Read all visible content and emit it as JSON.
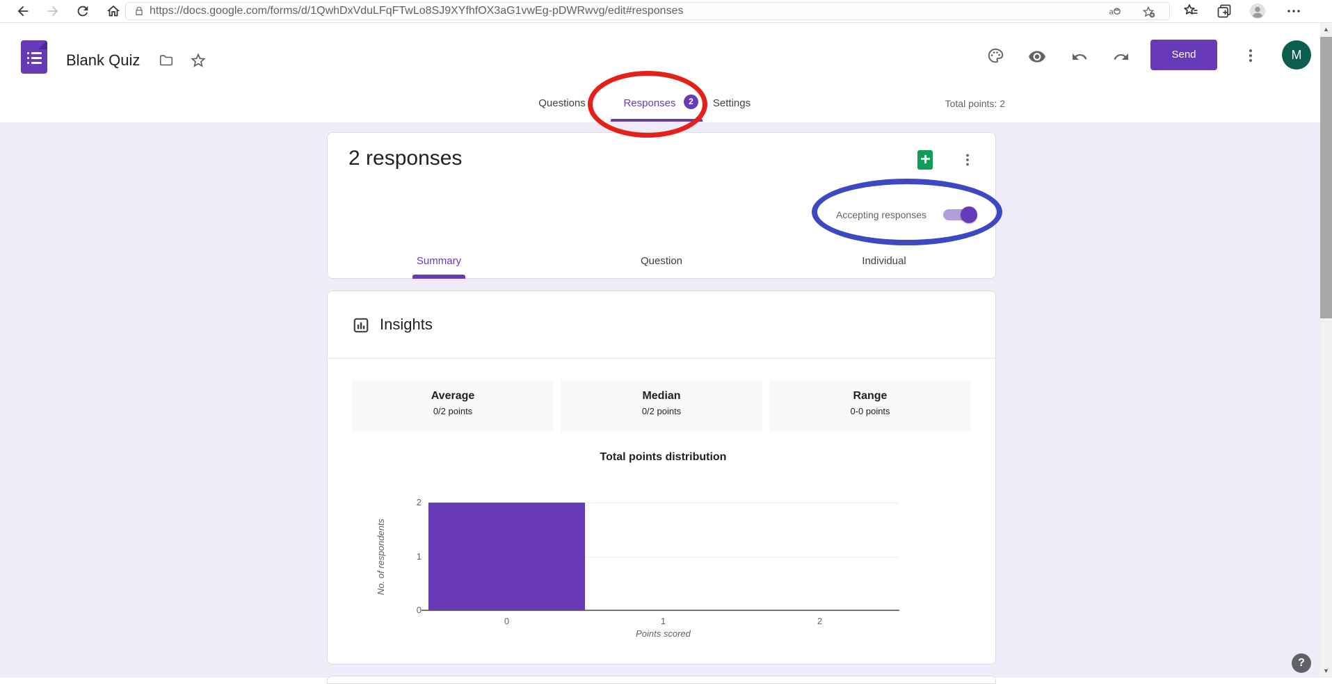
{
  "browser": {
    "url": "https://docs.google.com/forms/d/1QwhDxVduLFqFTwLo8SJ9XYfhfOX3aG1vwEg-pDWRwvg/edit#responses"
  },
  "header": {
    "title": "Blank Quiz",
    "send_label": "Send",
    "avatar_letter": "M",
    "total_points": "Total points: 2",
    "tabs": [
      {
        "label": "Questions"
      },
      {
        "label": "Responses",
        "badge": "2"
      },
      {
        "label": "Settings"
      }
    ]
  },
  "responses_card": {
    "title": "2 responses",
    "accepting_label": "Accepting responses",
    "toggle_on": true,
    "tabs": [
      {
        "label": "Summary"
      },
      {
        "label": "Question"
      },
      {
        "label": "Individual"
      }
    ]
  },
  "insights": {
    "title": "Insights",
    "stats": [
      {
        "label": "Average",
        "value": "0/2 points"
      },
      {
        "label": "Median",
        "value": "0/2 points"
      },
      {
        "label": "Range",
        "value": "0-0 points"
      }
    ]
  },
  "chart_data": {
    "type": "bar",
    "title": "Total points distribution",
    "xlabel": "Points scored",
    "ylabel": "No. of respondents",
    "categories": [
      "0",
      "1",
      "2"
    ],
    "values": [
      2,
      0,
      0
    ],
    "ylim": [
      0,
      2
    ],
    "yticks": [
      0,
      1,
      2
    ],
    "bar_color": "#673ab7",
    "grid": true,
    "legend": "none"
  },
  "annotations": [
    {
      "shape": "ellipse",
      "color": "#e52018",
      "target": "responses-tab"
    },
    {
      "shape": "ellipse",
      "color": "#3d48c3",
      "target": "accepting-responses-toggle"
    }
  ],
  "help_label": "?",
  "colors": {
    "accent": "#673ab7",
    "page_bg": "#f0ebf8",
    "sheets_green": "#0f9d58",
    "avatar_bg": "#0b5d4e",
    "annotation_red": "#e52018",
    "annotation_blue": "#3d48c3"
  }
}
